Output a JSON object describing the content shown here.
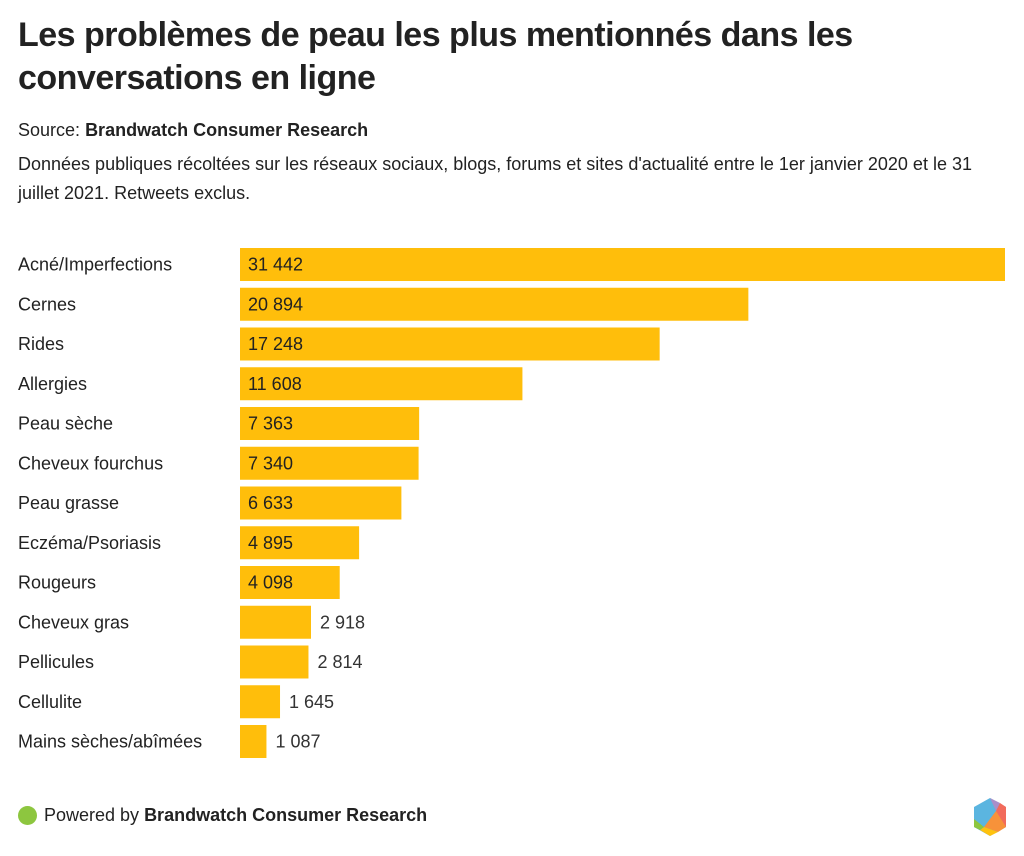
{
  "header": {
    "title": "Les problèmes de peau les plus mentionnés dans les conversations en ligne",
    "source_label": "Source:",
    "source_name": "Brandwatch Consumer Research",
    "description": "Données publiques récoltées sur les réseaux sociaux, blogs, forums et sites d'actualité entre le 1er janvier 2020 et le 31 juillet 2021. Retweets exclus."
  },
  "chart_data": {
    "type": "bar",
    "orientation": "horizontal",
    "title": "Les problèmes de peau les plus mentionnés dans les conversations en ligne",
    "xlabel": "",
    "ylabel": "",
    "grid": false,
    "legend": "none",
    "xlim": [
      0,
      31442
    ],
    "categories": [
      "Acné/Imperfections",
      "Cernes",
      "Rides",
      "Allergies",
      "Peau sèche",
      "Cheveux fourchus",
      "Peau grasse",
      "Eczéma/Psoriasis",
      "Rougeurs",
      "Cheveux gras",
      "Pellicules",
      "Cellulite",
      "Mains sèches/abîmées"
    ],
    "values": [
      31442,
      20894,
      17248,
      11608,
      7363,
      7340,
      6633,
      4895,
      4098,
      2918,
      2814,
      1645,
      1087
    ],
    "value_labels": [
      "31 442",
      "20 894",
      "17 248",
      "11 608",
      "7 363",
      "7 340",
      "6 633",
      "4 895",
      "4 098",
      "2 918",
      "2 814",
      "1 645",
      "1 087"
    ],
    "bar_color": "#FFBE0B"
  },
  "footer": {
    "powered_label": "Powered by",
    "powered_name": "Brandwatch Consumer Research",
    "dot_color": "#8DC63F",
    "logo_icon": "brandwatch-hexagon-logo"
  }
}
